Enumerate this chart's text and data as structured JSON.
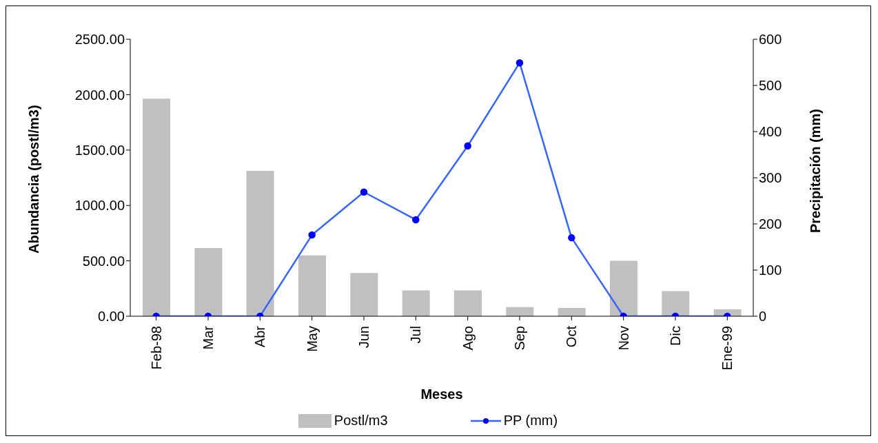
{
  "chart_data": {
    "type": "bar",
    "xlabel": "Meses",
    "ylabel": "Abundancia (postl/m3)",
    "y2label": "Precipitación (mm)",
    "categories": [
      "Feb-98",
      "Mar",
      "Abr",
      "May",
      "Jun",
      "Jul",
      "Ago",
      "Sep",
      "Oct",
      "Nov",
      "Dic",
      "Ene-99"
    ],
    "series": [
      {
        "name": "Postl/m3",
        "color": "#c0c0c0",
        "values": [
          1964,
          616,
          1312,
          549,
          391,
          233,
          233,
          82,
          75,
          501,
          227,
          62
        ]
      },
      {
        "name": "PP (mm)",
        "type": "line",
        "axis": "y2",
        "color": "#3366ff",
        "marker": "circle",
        "values": [
          0,
          0,
          0,
          176,
          269,
          209,
          369,
          549,
          170,
          0,
          0,
          0
        ]
      }
    ],
    "ylim": [
      0,
      2500
    ],
    "yticks": [
      {
        "value": 0,
        "label": "0.00"
      },
      {
        "value": 500,
        "label": "500.00"
      },
      {
        "value": 1000,
        "label": "1000.00"
      },
      {
        "value": 1500,
        "label": "1500.00"
      },
      {
        "value": 2000,
        "label": "2000.00"
      },
      {
        "value": 2500,
        "label": "2500.00"
      }
    ],
    "y2lim": [
      0,
      600
    ],
    "y2ticks": [
      0,
      100,
      200,
      300,
      400,
      500,
      600
    ],
    "grid": false,
    "legend": "bottom"
  }
}
